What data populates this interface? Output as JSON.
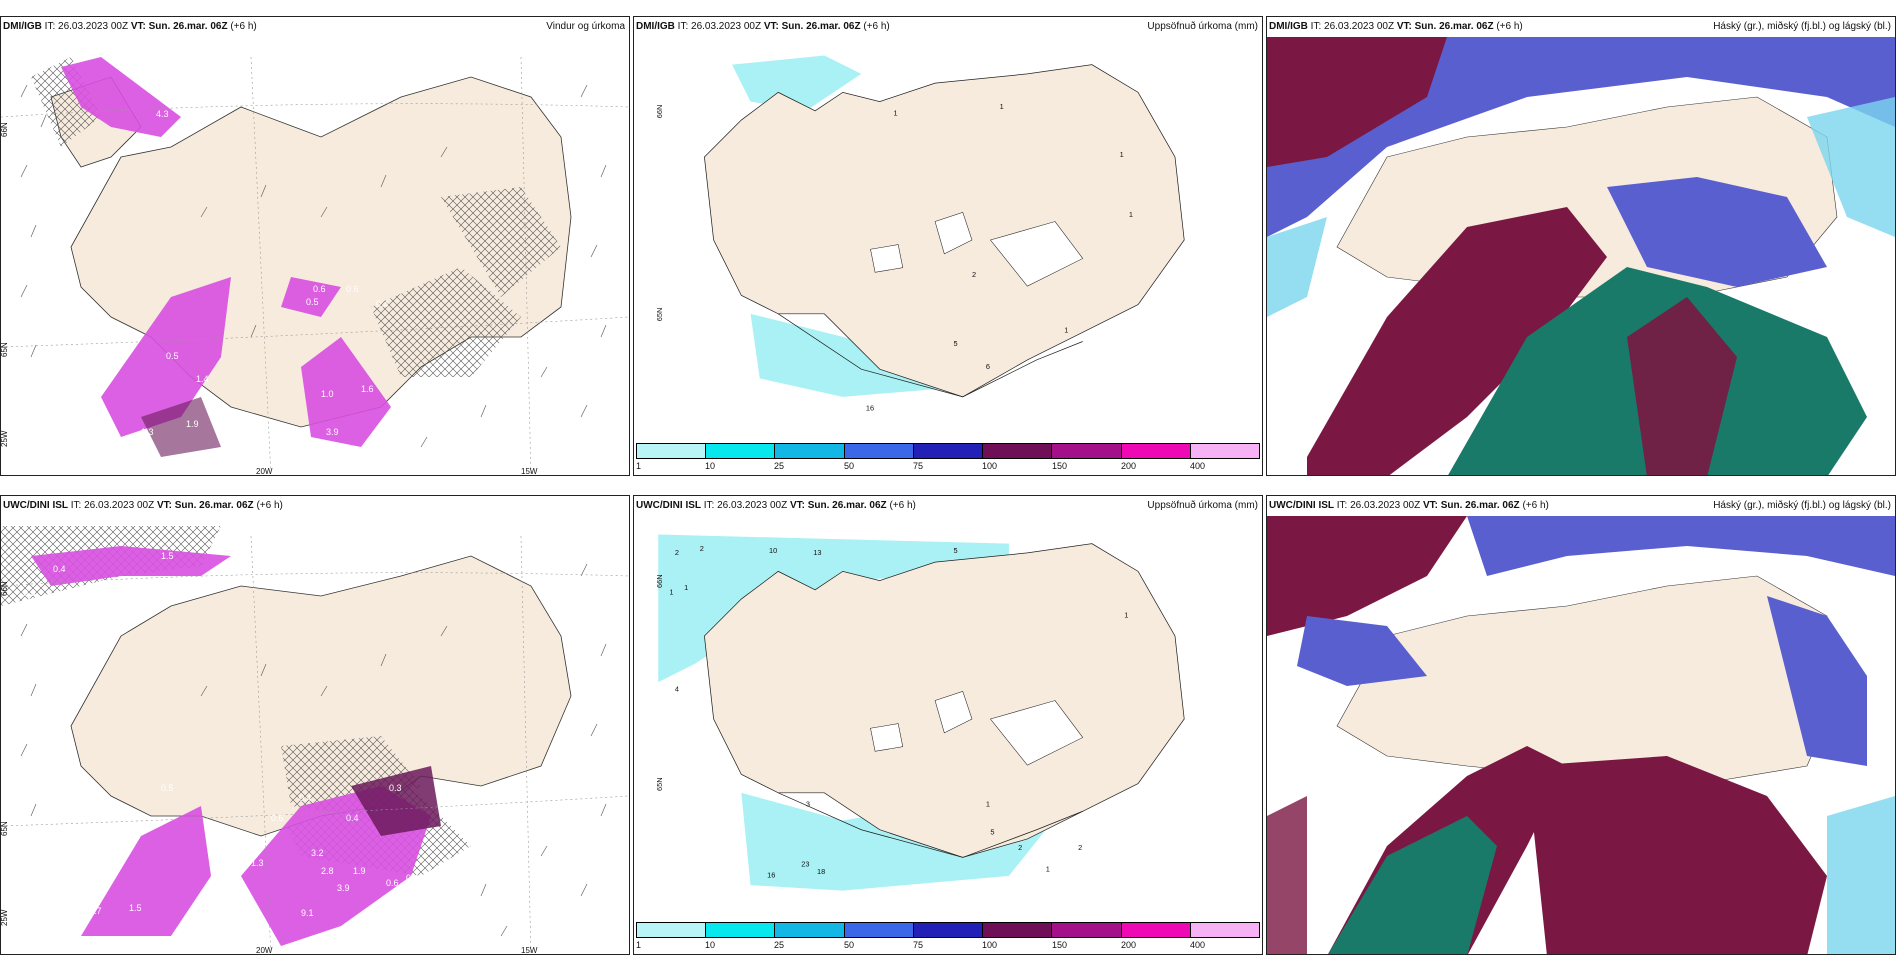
{
  "panels": [
    {
      "id": "p1",
      "title_bold": "DMI/IGB",
      "title_rest": " IT: 26.03.2023 00Z ",
      "vt_bold": "VT: Sun. 26.mar. 06Z",
      "lead": " (+6 h)",
      "right_title": "Vindur og úrkoma",
      "labels": [
        "66N",
        "65N",
        "25W",
        "20W",
        "15W"
      ],
      "values": [
        "4.3",
        "0.6",
        "0.6",
        "0.5",
        "0.4",
        "1.4",
        "0.5",
        "1.9",
        "1.3",
        "1.6",
        "1.0",
        "3.6",
        "3.9"
      ]
    },
    {
      "id": "p2",
      "title_bold": "DMI/IGB",
      "title_rest": " IT: 26.03.2023 00Z ",
      "vt_bold": "VT: Sun. 26.mar. 06Z",
      "lead": " (+6 h)",
      "right_title": "Uppsöfnuð úrkoma (mm)",
      "labels": [
        "66N",
        "65N"
      ],
      "values": [
        "1",
        "1",
        "1",
        "1",
        "2",
        "1",
        "5",
        "6",
        "16"
      ]
    },
    {
      "id": "p3",
      "title_bold": "DMI/IGB",
      "title_rest": " IT: 26.03.2023 00Z ",
      "vt_bold": "VT: Sun. 26.mar. 06Z",
      "lead": " (+6 h)",
      "right_title": "Háský (gr.), miðský (fj.bl.) og lágský (bl.)"
    },
    {
      "id": "p4",
      "title_bold": "UWC/DINI ISL",
      "title_rest": " IT: 26.03.2023 00Z ",
      "vt_bold": "VT: Sun. 26.mar. 06Z",
      "lead": " (+6 h)",
      "right_title": "",
      "labels": [
        "66N",
        "65N",
        "25W",
        "20W",
        "15W"
      ],
      "values": [
        "0.4",
        "0.3",
        "1.5",
        "0.5",
        "0.4",
        "0.3",
        "0.6",
        "0.4",
        "1.3",
        "3.2",
        "2.8",
        "3.9",
        "1.9",
        "0.6",
        "0.4",
        "0.7",
        "1.5",
        "9.1"
      ]
    },
    {
      "id": "p5",
      "title_bold": "UWC/DINI ISL",
      "title_rest": " IT: 26.03.2023 00Z ",
      "vt_bold": "VT: Sun. 26.mar. 06Z",
      "lead": " (+6 h)",
      "right_title": "Uppsöfnuð úrkoma (mm)",
      "labels": [
        "66N",
        "65N"
      ],
      "values": [
        "2",
        "2",
        "1",
        "1",
        "10",
        "13",
        "5",
        "4",
        "1",
        "3",
        "1",
        "5",
        "2",
        "2",
        "23",
        "18",
        "16",
        "1"
      ]
    },
    {
      "id": "p6",
      "title_bold": "UWC/DINI ISL",
      "title_rest": " IT: 26.03.2023 00Z ",
      "vt_bold": "VT: Sun. 26.mar. 06Z",
      "lead": " (+6 h)",
      "right_title": "Háský (gr.), miðský (fj.bl.) og lágský (bl.)"
    }
  ],
  "colorbar": {
    "colors": [
      "#b9f4f7",
      "#06e8ee",
      "#12b7e6",
      "#3a68e8",
      "#2320b8",
      "#6e0f57",
      "#a3108a",
      "#ee09b4",
      "#f6b2f4"
    ],
    "ticks": [
      "1",
      "10",
      "25",
      "50",
      "75",
      "100",
      "150",
      "200",
      "400"
    ]
  },
  "palette": {
    "land": "#f7ebdd",
    "precip_magenta": "#d84fe0",
    "precip_dark": "#6b1a5a",
    "accum_cyan": "#a9f1f4",
    "cloud_high": "#7a1742",
    "cloud_mid": "#5a5fd0",
    "cloud_low": "#1a7a6a",
    "cloud_light": "#7bd6ef"
  }
}
